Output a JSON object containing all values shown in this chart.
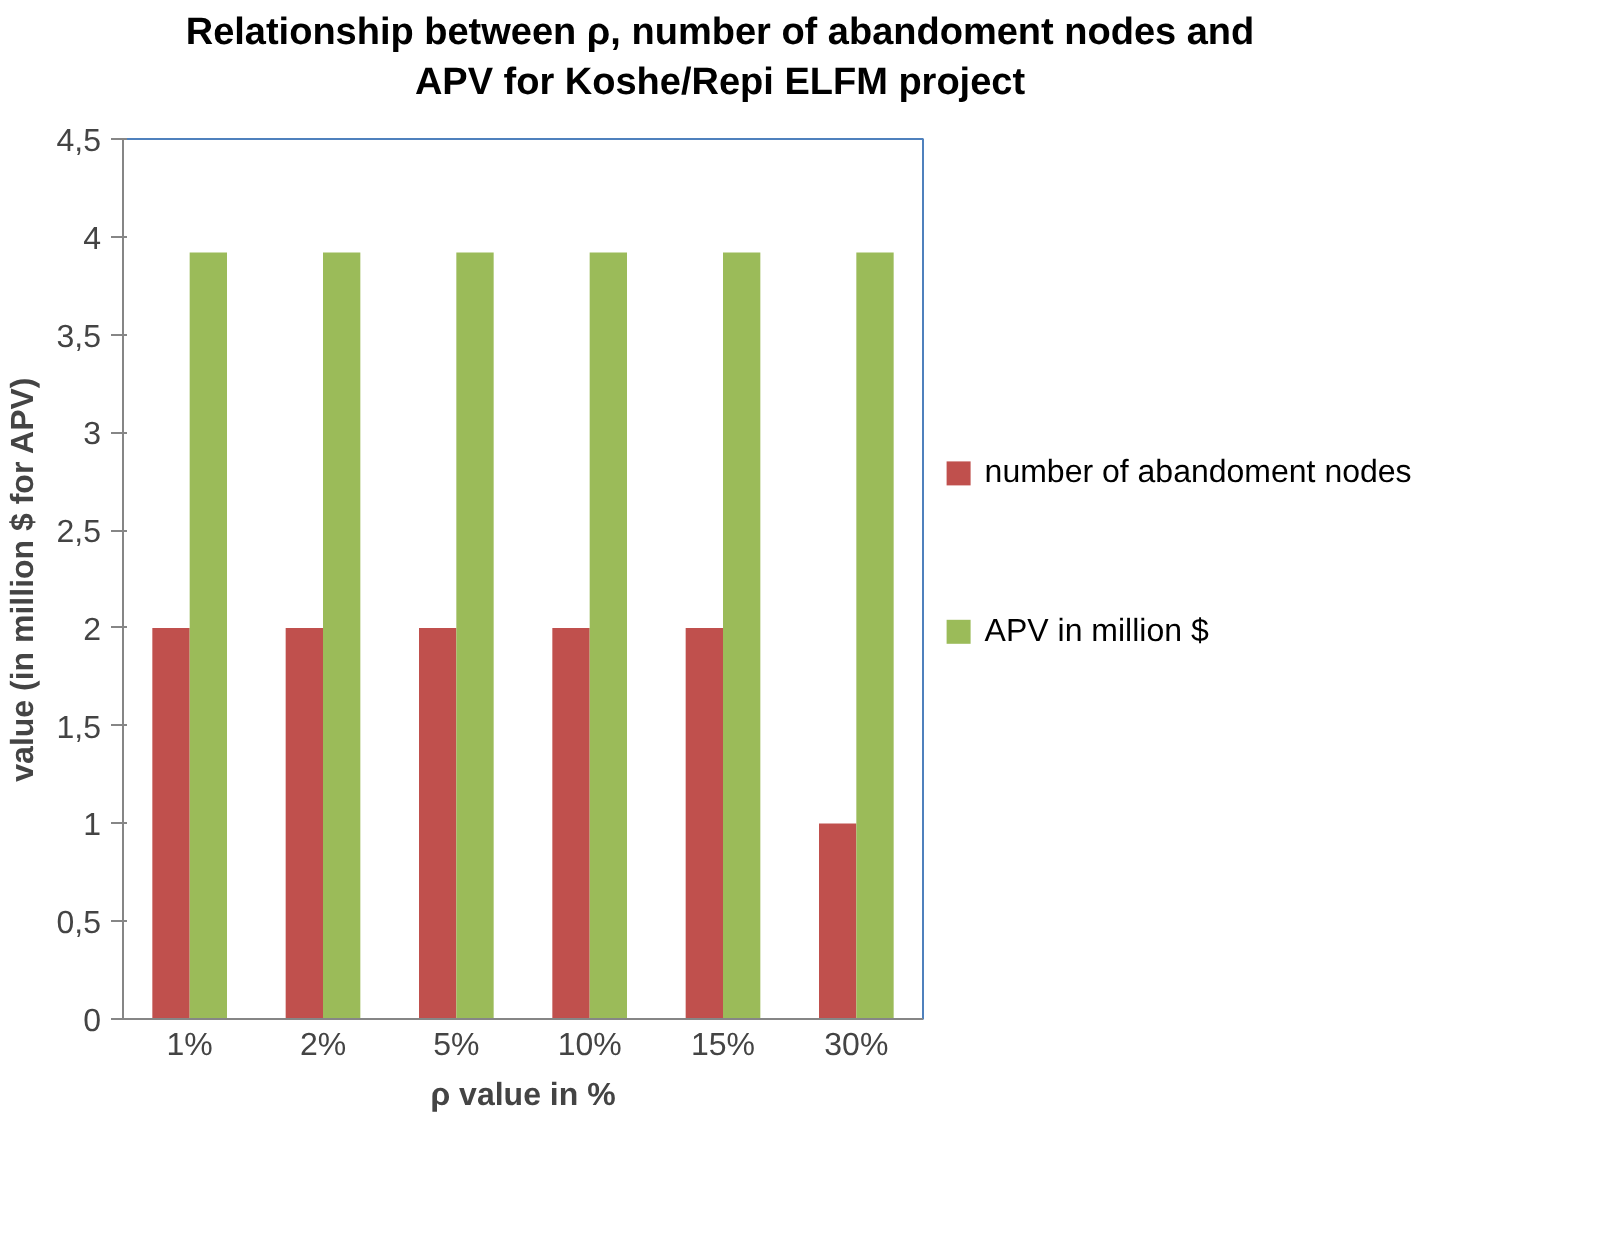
{
  "chart_data": {
    "type": "bar",
    "title": "Relationship between ρ, number of abandoment nodes and APV for Koshe/Repi ELFM project",
    "xlabel": "ρ value in %",
    "ylabel": "value (in million $ for APV)",
    "categories": [
      "1%",
      "2%",
      "5%",
      "10%",
      "15%",
      "30%"
    ],
    "series": [
      {
        "name": "number of abandoment nodes",
        "color": "#c0504d",
        "values": [
          2,
          2,
          2,
          2,
          2,
          1
        ]
      },
      {
        "name": "APV in million $",
        "color": "#9bbb59",
        "values": [
          3.92,
          3.92,
          3.92,
          3.92,
          3.92,
          3.92
        ]
      }
    ],
    "ylim": [
      0,
      4.5
    ],
    "yticks": [
      0,
      {
        "value": 0.5,
        "label": "0,5"
      },
      1,
      {
        "value": 1.5,
        "label": "1,5"
      },
      2,
      {
        "value": 2.5,
        "label": "2,5"
      },
      3,
      {
        "value": 3.5,
        "label": "3,5"
      },
      4,
      {
        "value": 4.5,
        "label": "4,5"
      }
    ],
    "grid": false,
    "legend": "right"
  }
}
